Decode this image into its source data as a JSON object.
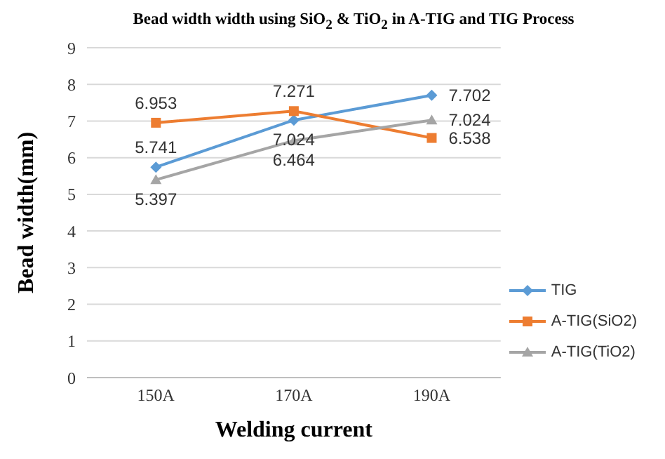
{
  "chart_data": {
    "type": "line",
    "title": "Bead width width using SiO$_{2}$ & TiO$_{2}$ in A-TIG and TIG Process",
    "xlabel": "Welding current",
    "ylabel": "Bead width(mm)",
    "categories": [
      "150A",
      "170A",
      "190A"
    ],
    "series": [
      {
        "name": "TIG",
        "color": "#5b9bd5",
        "marker": "diamond",
        "values": [
          5.741,
          7.024,
          7.702
        ]
      },
      {
        "name": "A-TIG(SiO2)",
        "color": "#ed7d31",
        "marker": "square",
        "values": [
          6.953,
          7.271,
          6.538
        ]
      },
      {
        "name": "A-TIG(TiO2)",
        "color": "#a5a5a5",
        "marker": "triangle",
        "values": [
          5.397,
          6.464,
          7.024
        ]
      }
    ],
    "ylim": [
      0,
      9
    ],
    "yticks": [
      0,
      1,
      2,
      3,
      4,
      5,
      6,
      7,
      8,
      9
    ],
    "grid": "y",
    "legend": "right",
    "data_labels": true
  }
}
